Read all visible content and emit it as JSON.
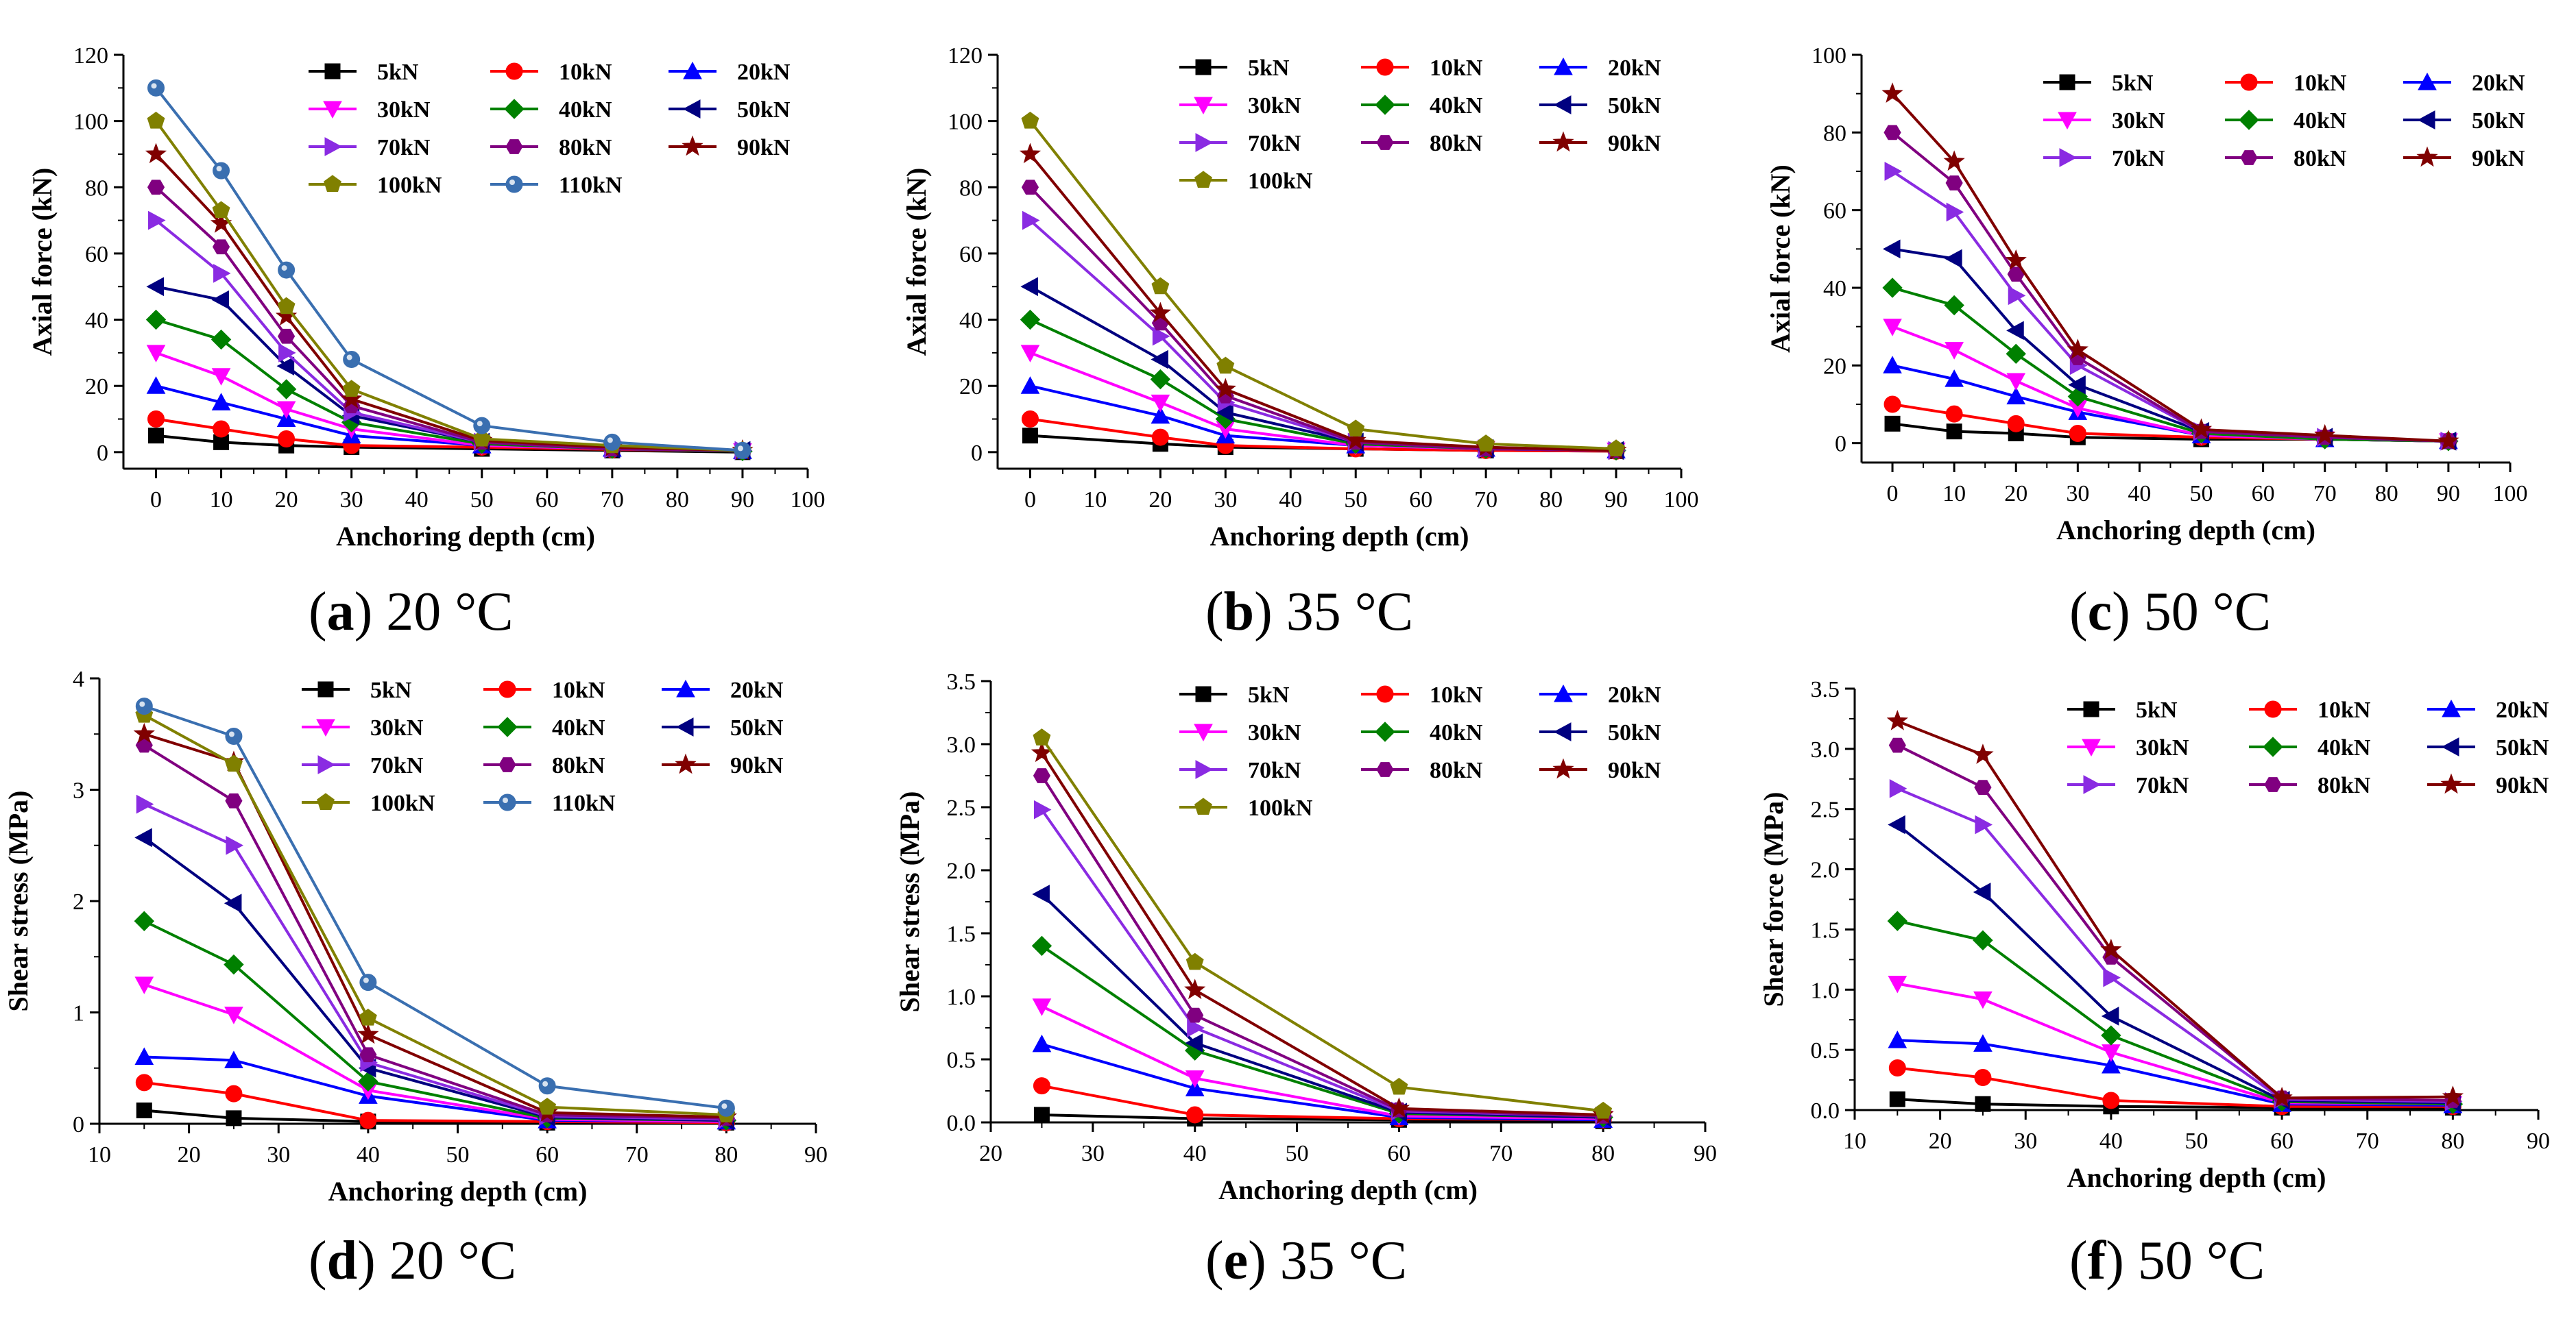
{
  "series_styles": [
    {
      "name": "5kN",
      "color": "#000000",
      "marker": "square"
    },
    {
      "name": "10kN",
      "color": "#ff0000",
      "marker": "circle"
    },
    {
      "name": "20kN",
      "color": "#0000ff",
      "marker": "triangle-up"
    },
    {
      "name": "30kN",
      "color": "#ff00ff",
      "marker": "triangle-down"
    },
    {
      "name": "40kN",
      "color": "#008000",
      "marker": "diamond"
    },
    {
      "name": "50kN",
      "color": "#000080",
      "marker": "triangle-left"
    },
    {
      "name": "70kN",
      "color": "#8a2be2",
      "marker": "triangle-right"
    },
    {
      "name": "80kN",
      "color": "#800080",
      "marker": "hexagon"
    },
    {
      "name": "90kN",
      "color": "#800000",
      "marker": "star"
    },
    {
      "name": "100kN",
      "color": "#808000",
      "marker": "pentagon"
    },
    {
      "name": "110kN",
      "color": "#3a6fb0",
      "marker": "sphere"
    }
  ],
  "chart_data": [
    {
      "type": "line",
      "caption_letter": "a",
      "caption_rest": " 20 °C",
      "xlabel": "Anchoring depth (cm)",
      "ylabel": "Axial force (kN)",
      "xlim": [
        -5,
        100
      ],
      "ylim": [
        -5,
        120
      ],
      "xticks": [
        0,
        10,
        20,
        30,
        40,
        50,
        60,
        70,
        80,
        90,
        100
      ],
      "yticks": [
        0,
        20,
        40,
        60,
        80,
        100,
        120
      ],
      "ytick_labels": [
        "0",
        "20",
        "40",
        "60",
        "80",
        "100",
        "120"
      ],
      "x": [
        0,
        10,
        20,
        30,
        50,
        70,
        90
      ],
      "series": [
        {
          "name": "5kN",
          "values": [
            5,
            3,
            2,
            1.5,
            1,
            0.5,
            0
          ]
        },
        {
          "name": "10kN",
          "values": [
            10,
            7,
            4,
            2,
            1.5,
            0.8,
            0.3
          ]
        },
        {
          "name": "20kN",
          "values": [
            20,
            15,
            10,
            5,
            2,
            1,
            0.3
          ]
        },
        {
          "name": "30kN",
          "values": [
            30,
            23,
            13,
            7,
            2,
            1,
            0.3
          ]
        },
        {
          "name": "40kN",
          "values": [
            40,
            34,
            19,
            9,
            2.5,
            1,
            0.3
          ]
        },
        {
          "name": "50kN",
          "values": [
            50,
            46,
            26,
            11,
            3,
            1,
            0.5
          ]
        },
        {
          "name": "70kN",
          "values": [
            70,
            54,
            30,
            12,
            3,
            1,
            0.5
          ]
        },
        {
          "name": "80kN",
          "values": [
            80,
            62,
            35,
            14,
            3,
            1,
            0.5
          ]
        },
        {
          "name": "90kN",
          "values": [
            90,
            69,
            41,
            16,
            3.5,
            1.5,
            0.5
          ]
        },
        {
          "name": "100kN",
          "values": [
            100,
            73,
            44,
            19,
            4,
            2,
            0.5
          ]
        },
        {
          "name": "110kN",
          "values": [
            110,
            85,
            55,
            28,
            8,
            3,
            0.5
          ]
        }
      ]
    },
    {
      "type": "line",
      "caption_letter": "b",
      "caption_rest": " 35 °C",
      "xlabel": "Anchoring depth (cm)",
      "ylabel": "Axial force (kN)",
      "xlim": [
        -5,
        100
      ],
      "ylim": [
        -5,
        120
      ],
      "xticks": [
        0,
        10,
        20,
        30,
        40,
        50,
        60,
        70,
        80,
        90,
        100
      ],
      "yticks": [
        0,
        20,
        40,
        60,
        80,
        100,
        120
      ],
      "ytick_labels": [
        "0",
        "20",
        "40",
        "60",
        "80",
        "100",
        "120"
      ],
      "x": [
        0,
        20,
        30,
        50,
        70,
        90
      ],
      "series": [
        {
          "name": "5kN",
          "values": [
            5,
            2.5,
            1.5,
            1,
            0.5,
            0.3
          ]
        },
        {
          "name": "10kN",
          "values": [
            10,
            4.5,
            2,
            1,
            0.5,
            0.3
          ]
        },
        {
          "name": "20kN",
          "values": [
            20,
            11,
            5,
            2,
            1,
            0.5
          ]
        },
        {
          "name": "30kN",
          "values": [
            30,
            15,
            7,
            2,
            1,
            0.5
          ]
        },
        {
          "name": "40kN",
          "values": [
            40,
            22,
            10,
            2.5,
            1,
            0.5
          ]
        },
        {
          "name": "50kN",
          "values": [
            50,
            28,
            12,
            3,
            1,
            0.5
          ]
        },
        {
          "name": "70kN",
          "values": [
            70,
            35,
            15,
            3,
            1,
            0.5
          ]
        },
        {
          "name": "80kN",
          "values": [
            80,
            39,
            17,
            3,
            1,
            0.5
          ]
        },
        {
          "name": "90kN",
          "values": [
            90,
            42,
            19,
            3.5,
            1.5,
            0.5
          ]
        },
        {
          "name": "100kN",
          "values": [
            100,
            50,
            26,
            7,
            2.5,
            1
          ]
        }
      ]
    },
    {
      "type": "line",
      "caption_letter": "c",
      "caption_rest": " 50 °C",
      "xlabel": "Anchoring depth (cm)",
      "ylabel": "Axial force (kN)",
      "xlim": [
        -5,
        100
      ],
      "ylim": [
        -5,
        100
      ],
      "xticks": [
        0,
        10,
        20,
        30,
        40,
        50,
        60,
        70,
        80,
        90,
        100
      ],
      "yticks": [
        0,
        20,
        40,
        60,
        80,
        100
      ],
      "ytick_labels": [
        "0",
        "20",
        "40",
        "60",
        "80",
        "100"
      ],
      "x": [
        0,
        10,
        20,
        30,
        50,
        70,
        90
      ],
      "series": [
        {
          "name": "5kN",
          "values": [
            5,
            3,
            2.5,
            1.5,
            1,
            1,
            0.5
          ]
        },
        {
          "name": "10kN",
          "values": [
            10,
            7.5,
            5,
            2.5,
            1.5,
            1,
            0.5
          ]
        },
        {
          "name": "20kN",
          "values": [
            20,
            16.5,
            12,
            8,
            2,
            1,
            0.5
          ]
        },
        {
          "name": "30kN",
          "values": [
            30,
            24,
            16,
            9,
            2,
            1,
            0.5
          ]
        },
        {
          "name": "40kN",
          "values": [
            40,
            35.5,
            23,
            12,
            2.5,
            1,
            0.5
          ]
        },
        {
          "name": "50kN",
          "values": [
            50,
            47.5,
            29,
            15,
            3,
            1.5,
            0.5
          ]
        },
        {
          "name": "70kN",
          "values": [
            70,
            59.5,
            38,
            20,
            3,
            1.5,
            0.5
          ]
        },
        {
          "name": "80kN",
          "values": [
            80,
            67,
            43.5,
            22,
            3,
            1.5,
            0.5
          ]
        },
        {
          "name": "90kN",
          "values": [
            90,
            72.5,
            47,
            24,
            3.5,
            2,
            0.5
          ]
        }
      ]
    },
    {
      "type": "line",
      "caption_letter": "d",
      "caption_rest": " 20 °C",
      "xlabel": "Anchoring depth (cm)",
      "ylabel": "Shear stress (MPa)",
      "xlim": [
        10,
        90
      ],
      "ylim": [
        0,
        4
      ],
      "xticks": [
        10,
        20,
        30,
        40,
        50,
        60,
        70,
        80,
        90
      ],
      "yticks": [
        0,
        1,
        2,
        3,
        4
      ],
      "ytick_labels": [
        "0",
        "1",
        "2",
        "3",
        "4"
      ],
      "x": [
        15,
        25,
        40,
        60,
        80
      ],
      "series": [
        {
          "name": "5kN",
          "values": [
            0.12,
            0.05,
            0.02,
            0.01,
            0.01
          ]
        },
        {
          "name": "10kN",
          "values": [
            0.37,
            0.27,
            0.03,
            0.02,
            0.01
          ]
        },
        {
          "name": "20kN",
          "values": [
            0.6,
            0.57,
            0.25,
            0.03,
            0.02
          ]
        },
        {
          "name": "30kN",
          "values": [
            1.25,
            0.98,
            0.3,
            0.04,
            0.02
          ]
        },
        {
          "name": "40kN",
          "values": [
            1.82,
            1.43,
            0.38,
            0.05,
            0.03
          ]
        },
        {
          "name": "50kN",
          "values": [
            2.57,
            1.98,
            0.5,
            0.06,
            0.03
          ]
        },
        {
          "name": "70kN",
          "values": [
            2.87,
            2.5,
            0.55,
            0.07,
            0.04
          ]
        },
        {
          "name": "80kN",
          "values": [
            3.4,
            2.9,
            0.62,
            0.08,
            0.05
          ]
        },
        {
          "name": "90kN",
          "values": [
            3.5,
            3.25,
            0.8,
            0.1,
            0.06
          ]
        },
        {
          "name": "100kN",
          "values": [
            3.67,
            3.23,
            0.95,
            0.15,
            0.08
          ]
        },
        {
          "name": "110kN",
          "values": [
            3.75,
            3.48,
            1.27,
            0.34,
            0.14
          ]
        }
      ]
    },
    {
      "type": "line",
      "caption_letter": "e",
      "caption_rest": " 35 °C",
      "xlabel": "Anchoring depth (cm)",
      "ylabel": "Shear stress (MPa)",
      "xlim": [
        20,
        90
      ],
      "ylim": [
        0,
        3.5
      ],
      "xticks": [
        20,
        30,
        40,
        50,
        60,
        70,
        80,
        90
      ],
      "yticks": [
        0,
        0.5,
        1,
        1.5,
        2,
        2.5,
        3,
        3.5
      ],
      "ytick_labels": [
        "0.0",
        "0.5",
        "1.0",
        "1.5",
        "2.0",
        "2.5",
        "3.0",
        "3.5"
      ],
      "x": [
        25,
        40,
        60,
        80
      ],
      "series": [
        {
          "name": "5kN",
          "values": [
            0.06,
            0.03,
            0.02,
            0.01
          ]
        },
        {
          "name": "10kN",
          "values": [
            0.29,
            0.06,
            0.03,
            0.02
          ]
        },
        {
          "name": "20kN",
          "values": [
            0.62,
            0.27,
            0.04,
            0.02
          ]
        },
        {
          "name": "30kN",
          "values": [
            0.92,
            0.35,
            0.05,
            0.03
          ]
        },
        {
          "name": "40kN",
          "values": [
            1.4,
            0.57,
            0.07,
            0.04
          ]
        },
        {
          "name": "50kN",
          "values": [
            1.81,
            0.63,
            0.08,
            0.04
          ]
        },
        {
          "name": "70kN",
          "values": [
            2.48,
            0.75,
            0.09,
            0.05
          ]
        },
        {
          "name": "80kN",
          "values": [
            2.75,
            0.85,
            0.1,
            0.05
          ]
        },
        {
          "name": "90kN",
          "values": [
            2.93,
            1.05,
            0.11,
            0.06
          ]
        },
        {
          "name": "100kN",
          "values": [
            3.05,
            1.27,
            0.28,
            0.09
          ]
        }
      ]
    },
    {
      "type": "line",
      "caption_letter": "f",
      "caption_rest": " 50 °C",
      "xlabel": "Anchoring depth (cm)",
      "ylabel": "Shear force (MPa)",
      "xlim": [
        10,
        90
      ],
      "ylim": [
        0,
        3.5
      ],
      "xticks": [
        10,
        20,
        30,
        40,
        50,
        60,
        70,
        80,
        90
      ],
      "yticks": [
        0,
        0.5,
        1,
        1.5,
        2,
        2.5,
        3,
        3.5
      ],
      "ytick_labels": [
        "0.0",
        "0.5",
        "1.0",
        "1.5",
        "2.0",
        "2.5",
        "3.0",
        "3.5"
      ],
      "x": [
        15,
        25,
        40,
        60,
        80
      ],
      "series": [
        {
          "name": "5kN",
          "values": [
            0.09,
            0.05,
            0.03,
            0.02,
            0.02
          ]
        },
        {
          "name": "10kN",
          "values": [
            0.35,
            0.27,
            0.08,
            0.03,
            0.03
          ]
        },
        {
          "name": "20kN",
          "values": [
            0.58,
            0.55,
            0.37,
            0.05,
            0.04
          ]
        },
        {
          "name": "30kN",
          "values": [
            1.05,
            0.92,
            0.48,
            0.06,
            0.05
          ]
        },
        {
          "name": "40kN",
          "values": [
            1.57,
            1.41,
            0.62,
            0.07,
            0.05
          ]
        },
        {
          "name": "50kN",
          "values": [
            2.37,
            1.81,
            0.78,
            0.08,
            0.06
          ]
        },
        {
          "name": "70kN",
          "values": [
            2.67,
            2.37,
            1.1,
            0.09,
            0.07
          ]
        },
        {
          "name": "80kN",
          "values": [
            3.03,
            2.68,
            1.27,
            0.1,
            0.08
          ]
        },
        {
          "name": "90kN",
          "values": [
            3.23,
            2.95,
            1.33,
            0.1,
            0.11
          ]
        }
      ]
    }
  ]
}
